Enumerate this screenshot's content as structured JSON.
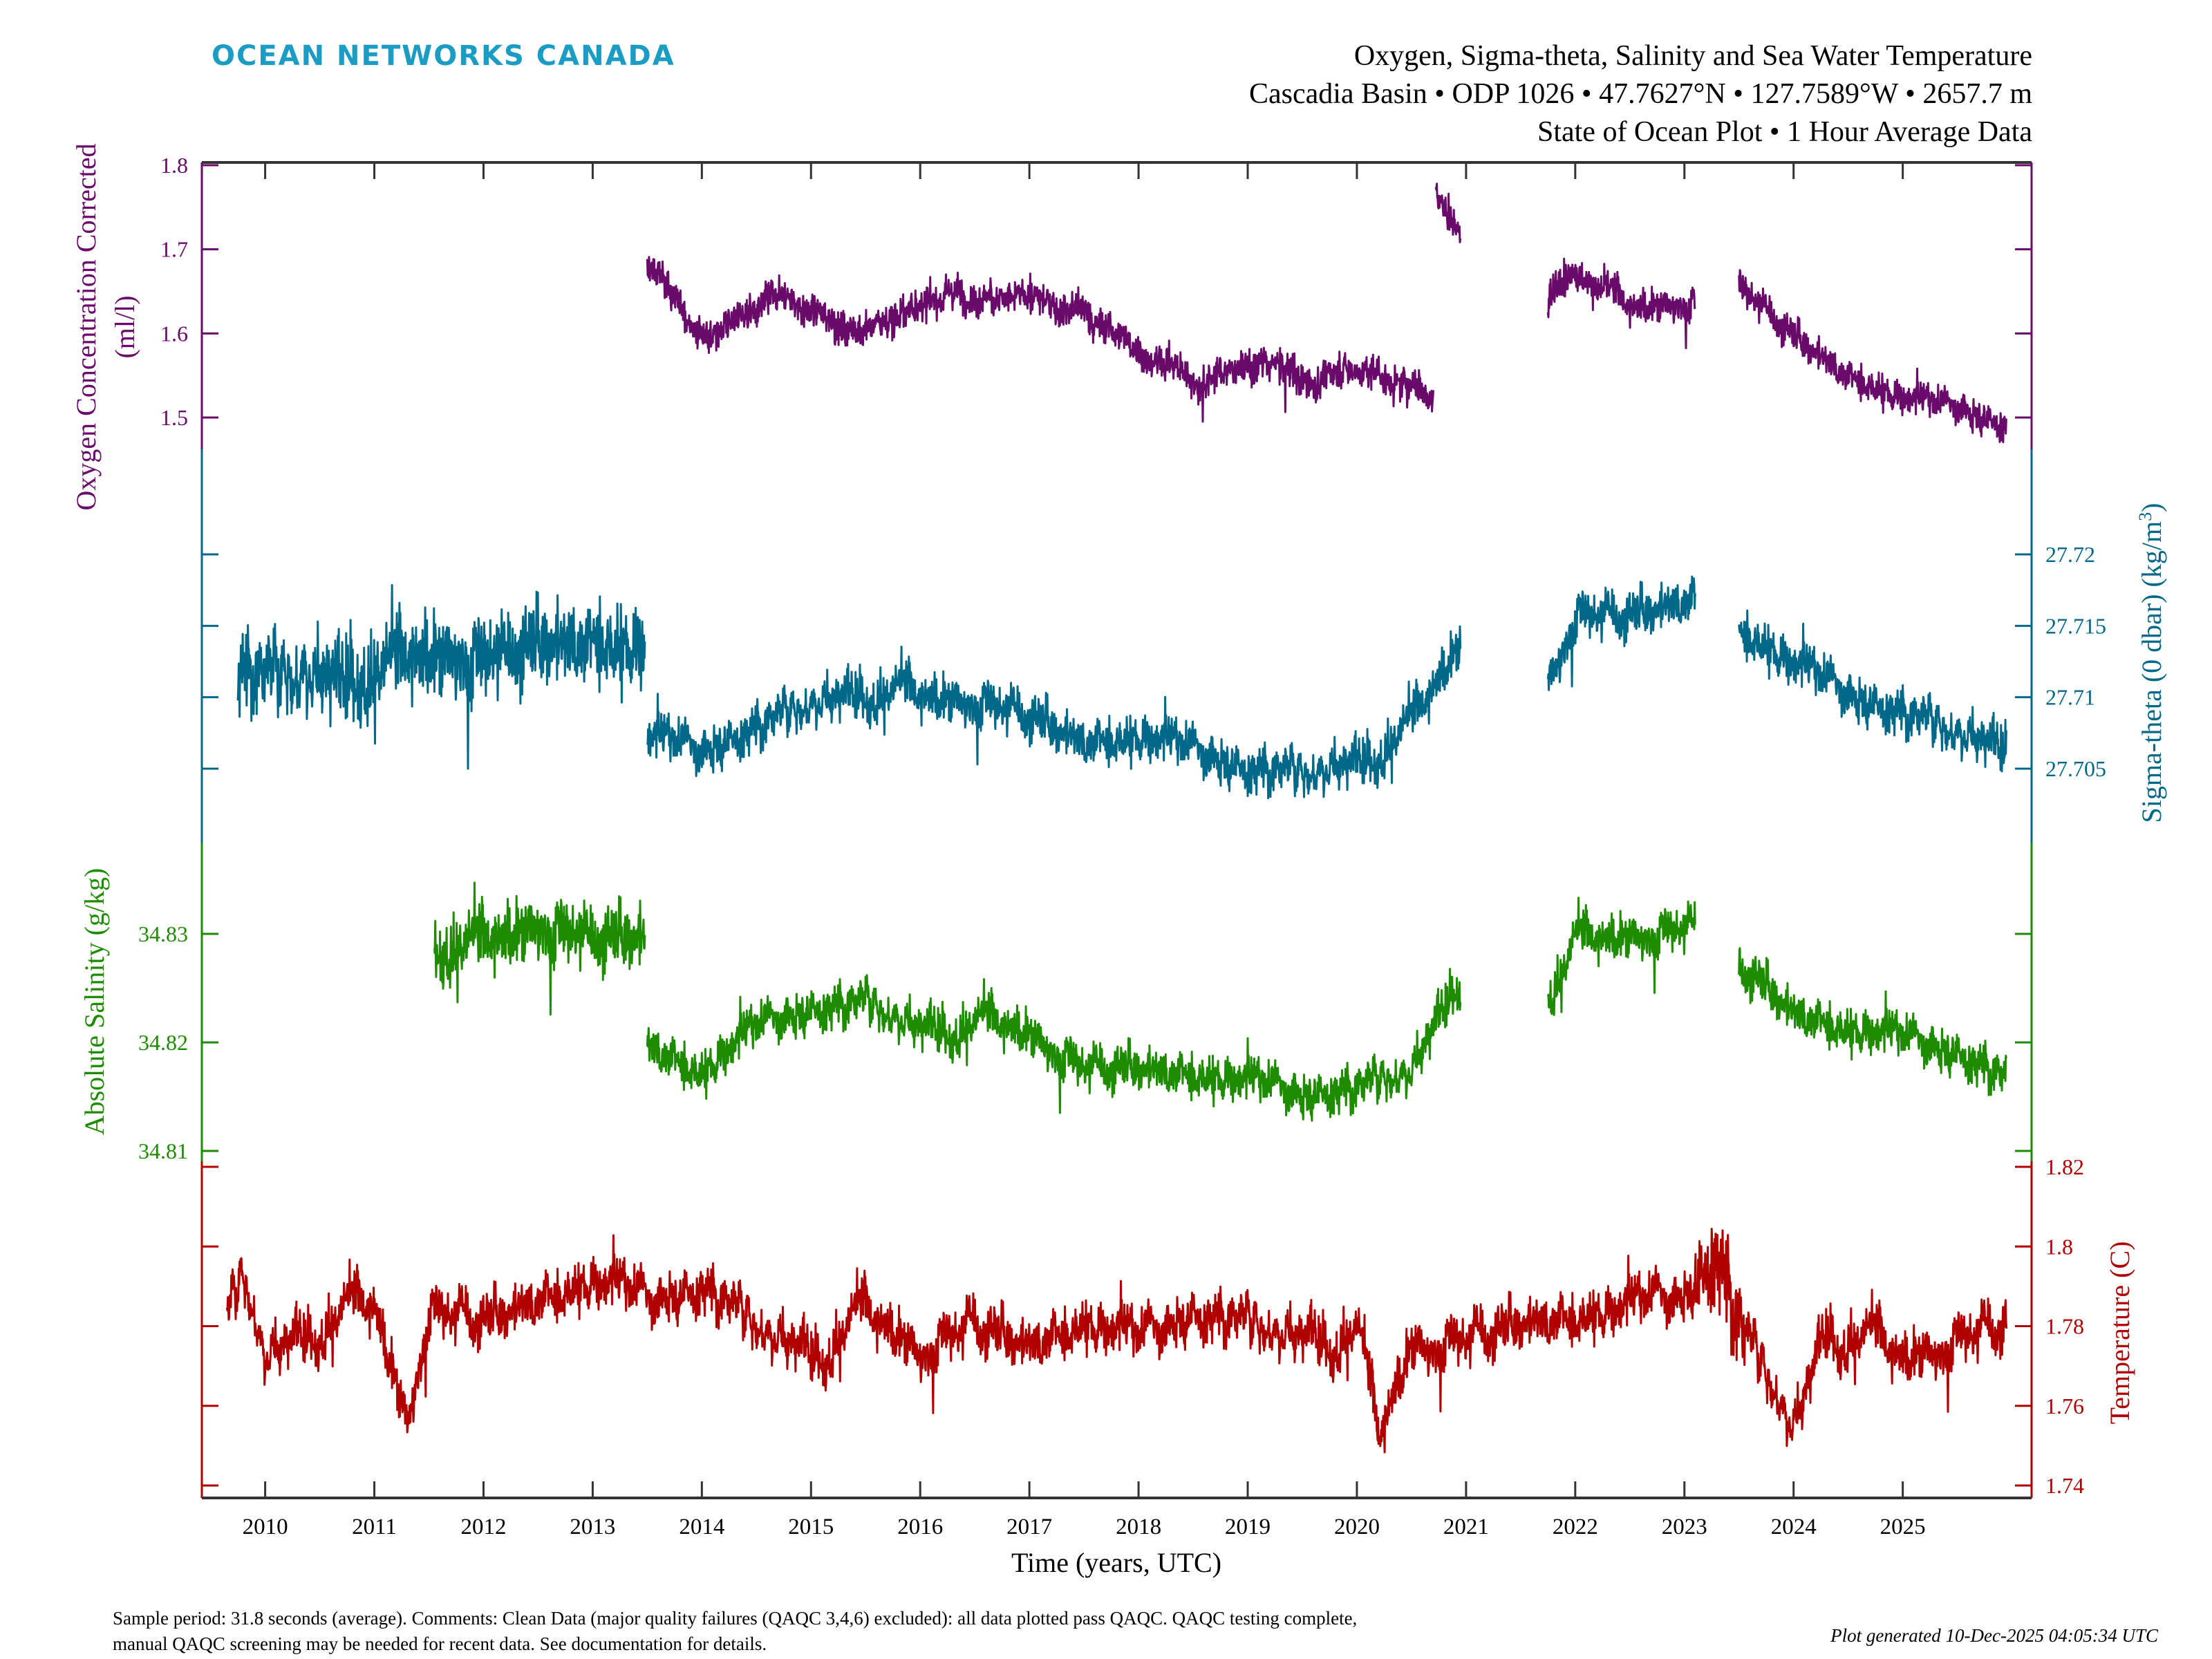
{
  "logo": {
    "text": "OCEAN NETWORKS CANADA",
    "color": "#1a9cc4"
  },
  "title": {
    "line1": "Oxygen, Sigma-theta, Salinity and Sea Water Temperature",
    "line2": "Cascadia Basin • ODP 1026 • 47.7627°N • 127.7589°W • 2657.7 m",
    "line3": "State of Ocean Plot • 1 Hour Average Data"
  },
  "footer": {
    "line1": "Sample period: 31.8 seconds (average). Comments: Clean Data (major quality failures (QAQC 3,4,6) excluded): all data plotted pass QAQC. QAQC testing complete,",
    "line2": "manual QAQC screening may be needed for recent data. See documentation for details.",
    "generated": "Plot generated 10-Dec-2025 04:05:34 UTC"
  },
  "chart_data": {
    "type": "line",
    "xlabel": "Time (years, UTC)",
    "xlim": [
      2009.42,
      2026.18
    ],
    "xticks": [
      "2010",
      "2011",
      "2012",
      "2013",
      "2014",
      "2015",
      "2016",
      "2017",
      "2018",
      "2019",
      "2020",
      "2021",
      "2022",
      "2023",
      "2024",
      "2025"
    ],
    "grid": false,
    "series": [
      {
        "key": "oxygen",
        "ylabel_line1": "Oxygen Concentration Corrected",
        "ylabel_line2": "(ml/l)",
        "axis_side": "left",
        "color": "#6a0a6a",
        "ylim": [
          1.5,
          1.8
        ],
        "yticks": [
          "1.5",
          "1.6",
          "1.7",
          "1.8"
        ],
        "segments": [
          [
            [
              2013.5,
              1.68
            ],
            [
              2014.0,
              1.6
            ],
            [
              2014.5,
              1.64
            ],
            [
              2015.0,
              1.63
            ],
            [
              2015.5,
              1.6
            ],
            [
              2016.0,
              1.64
            ],
            [
              2016.5,
              1.65
            ],
            [
              2017.0,
              1.64
            ],
            [
              2017.5,
              1.63
            ],
            [
              2018.0,
              1.58
            ],
            [
              2018.5,
              1.55
            ],
            [
              2019.0,
              1.57
            ],
            [
              2019.5,
              1.55
            ],
            [
              2020.0,
              1.56
            ],
            [
              2020.7,
              1.53
            ]
          ],
          [
            [
              2020.72,
              1.77
            ],
            [
              2020.95,
              1.72
            ]
          ],
          [
            [
              2021.75,
              1.64
            ],
            [
              2022.0,
              1.68
            ],
            [
              2022.5,
              1.63
            ],
            [
              2023.1,
              1.64
            ]
          ],
          [
            [
              2023.5,
              1.66
            ],
            [
              2024.0,
              1.6
            ],
            [
              2024.5,
              1.55
            ],
            [
              2025.0,
              1.52
            ],
            [
              2025.5,
              1.51
            ],
            [
              2025.95,
              1.49
            ]
          ]
        ]
      },
      {
        "key": "sigma",
        "ylabel": "Sigma-theta (0 dbar) (kg/m",
        "ylabel_sup": "3",
        "ylabel_end": ")",
        "axis_side": "right",
        "color": "#006888",
        "ylim": [
          27.705,
          27.72
        ],
        "yticks": [
          "27.705",
          "27.71",
          "27.715",
          "27.72"
        ],
        "segments": [
          [
            [
              2009.75,
              27.712
            ],
            [
              2010.5,
              27.712
            ],
            [
              2011.0,
              27.712
            ],
            [
              2011.5,
              27.713
            ],
            [
              2012.0,
              27.713
            ],
            [
              2012.5,
              27.714
            ],
            [
              2013.0,
              27.714
            ],
            [
              2013.48,
              27.713
            ]
          ],
          [
            [
              2013.5,
              27.707
            ],
            [
              2014.0,
              27.706
            ],
            [
              2014.5,
              27.708
            ],
            [
              2015.0,
              27.71
            ],
            [
              2015.5,
              27.711
            ],
            [
              2016.0,
              27.71
            ],
            [
              2016.5,
              27.71
            ],
            [
              2017.0,
              27.709
            ],
            [
              2017.5,
              27.707
            ],
            [
              2018.0,
              27.707
            ],
            [
              2018.5,
              27.706
            ],
            [
              2019.0,
              27.705
            ],
            [
              2019.5,
              27.705
            ],
            [
              2020.0,
              27.706
            ],
            [
              2020.5,
              27.708
            ],
            [
              2020.95,
              27.714
            ]
          ],
          [
            [
              2021.75,
              27.711
            ],
            [
              2022.0,
              27.716
            ],
            [
              2022.5,
              27.716
            ],
            [
              2023.1,
              27.717
            ]
          ],
          [
            [
              2023.5,
              27.715
            ],
            [
              2024.0,
              27.712
            ],
            [
              2024.5,
              27.71
            ],
            [
              2025.0,
              27.709
            ],
            [
              2025.5,
              27.708
            ],
            [
              2025.95,
              27.707
            ]
          ]
        ]
      },
      {
        "key": "salinity",
        "ylabel": "Absolute Salinity (g/kg)",
        "axis_side": "left",
        "color": "#1e8c00",
        "ylim": [
          34.81,
          34.83
        ],
        "yticks": [
          "34.81",
          "34.82",
          "34.83"
        ],
        "segments": [
          [
            [
              2011.55,
              34.829
            ],
            [
              2012.0,
              34.829
            ],
            [
              2012.5,
              34.831
            ],
            [
              2013.0,
              34.83
            ],
            [
              2013.48,
              34.83
            ]
          ],
          [
            [
              2013.5,
              34.82
            ],
            [
              2014.0,
              34.817
            ],
            [
              2014.5,
              34.821
            ],
            [
              2015.0,
              34.823
            ],
            [
              2015.5,
              34.824
            ],
            [
              2016.0,
              34.822
            ],
            [
              2016.5,
              34.822
            ],
            [
              2017.0,
              34.821
            ],
            [
              2017.5,
              34.818
            ],
            [
              2018.0,
              34.818
            ],
            [
              2018.5,
              34.817
            ],
            [
              2019.0,
              34.816
            ],
            [
              2019.5,
              34.815
            ],
            [
              2020.0,
              34.816
            ],
            [
              2020.5,
              34.818
            ],
            [
              2020.95,
              34.827
            ]
          ],
          [
            [
              2021.75,
              34.823
            ],
            [
              2022.0,
              34.829
            ],
            [
              2022.5,
              34.83
            ],
            [
              2023.1,
              34.831
            ]
          ],
          [
            [
              2023.5,
              34.828
            ],
            [
              2024.0,
              34.823
            ],
            [
              2024.5,
              34.821
            ],
            [
              2025.0,
              34.82
            ],
            [
              2025.5,
              34.819
            ],
            [
              2025.95,
              34.817
            ]
          ]
        ]
      },
      {
        "key": "temperature",
        "ylabel": "Temperature (C)",
        "axis_side": "right",
        "color": "#b00000",
        "ylim": [
          1.74,
          1.82
        ],
        "yticks": [
          "1.74",
          "1.76",
          "1.78",
          "1.8",
          "1.82"
        ],
        "segments": [
          [
            [
              2009.65,
              1.785
            ],
            [
              2009.8,
              1.795
            ],
            [
              2010.0,
              1.775
            ],
            [
              2010.5,
              1.783
            ],
            [
              2011.0,
              1.785
            ],
            [
              2011.3,
              1.757
            ],
            [
              2011.5,
              1.785
            ],
            [
              2012.0,
              1.783
            ],
            [
              2012.5,
              1.787
            ],
            [
              2013.0,
              1.79
            ],
            [
              2013.5,
              1.785
            ],
            [
              2014.0,
              1.79
            ],
            [
              2014.5,
              1.782
            ],
            [
              2015.0,
              1.776
            ],
            [
              2015.5,
              1.783
            ],
            [
              2016.0,
              1.775
            ],
            [
              2016.5,
              1.782
            ],
            [
              2017.0,
              1.776
            ],
            [
              2017.5,
              1.78
            ],
            [
              2018.0,
              1.775
            ],
            [
              2018.5,
              1.783
            ],
            [
              2019.0,
              1.782
            ],
            [
              2019.5,
              1.78
            ],
            [
              2020.0,
              1.78
            ],
            [
              2020.2,
              1.752
            ],
            [
              2020.5,
              1.776
            ],
            [
              2021.0,
              1.778
            ],
            [
              2021.5,
              1.782
            ],
            [
              2022.0,
              1.782
            ],
            [
              2022.5,
              1.783
            ],
            [
              2023.0,
              1.787
            ],
            [
              2023.3,
              1.798
            ],
            [
              2023.5,
              1.782
            ],
            [
              2024.0,
              1.757
            ],
            [
              2024.3,
              1.782
            ],
            [
              2024.5,
              1.78
            ],
            [
              2025.0,
              1.772
            ],
            [
              2025.5,
              1.778
            ],
            [
              2025.95,
              1.782
            ]
          ]
        ]
      }
    ]
  }
}
